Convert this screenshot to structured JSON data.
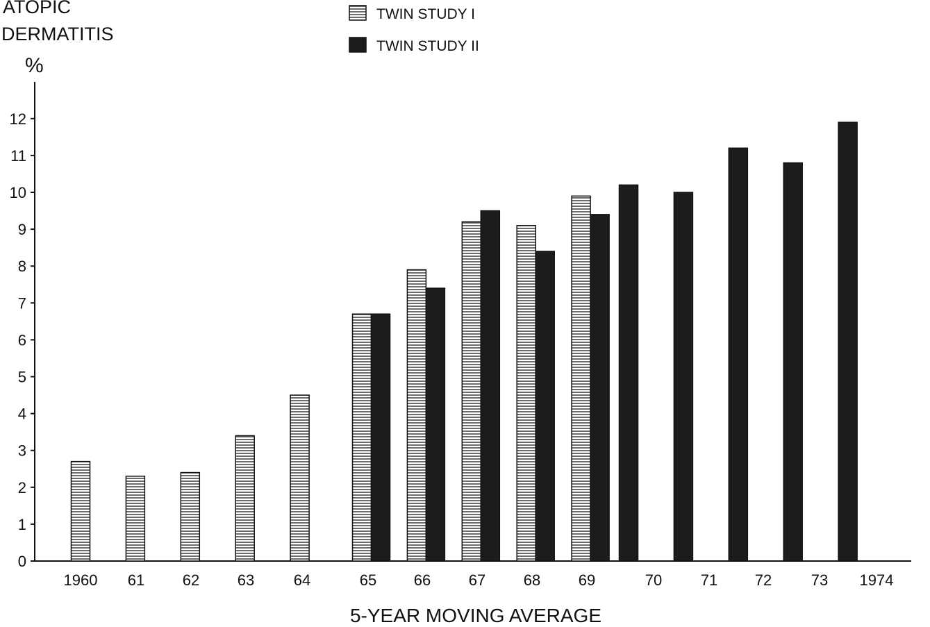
{
  "chart_data": {
    "type": "bar",
    "ylabel_lines": [
      "ATOPIC",
      "DERMATITIS"
    ],
    "yunit": "%",
    "xlabel": "5-YEAR MOVING AVERAGE",
    "categories": [
      "1960",
      "61",
      "62",
      "63",
      "64",
      "65",
      "66",
      "67",
      "68",
      "69",
      "70",
      "71",
      "72",
      "73",
      "1974"
    ],
    "series": [
      {
        "name": "TWIN STUDY I",
        "pattern": "horizontal-hatch",
        "values": [
          2.7,
          2.3,
          2.4,
          3.4,
          4.5,
          6.7,
          7.9,
          9.2,
          9.1,
          9.9,
          null,
          null,
          null,
          null,
          null
        ]
      },
      {
        "name": "TWIN STUDY II",
        "pattern": "solid",
        "values": [
          null,
          null,
          null,
          null,
          null,
          6.7,
          7.4,
          9.5,
          8.4,
          9.4,
          10.2,
          10.0,
          11.2,
          10.8,
          11.9
        ]
      }
    ],
    "ylim": [
      0,
      13
    ],
    "yticks": [
      0,
      1,
      2,
      3,
      4,
      5,
      6,
      7,
      8,
      9,
      10,
      11,
      12
    ],
    "grid": false,
    "legend_position": "top-center",
    "colors": {
      "solid": "#1c1c1c",
      "hatch_line": "#3a3a3a",
      "axis": "#111111"
    }
  }
}
